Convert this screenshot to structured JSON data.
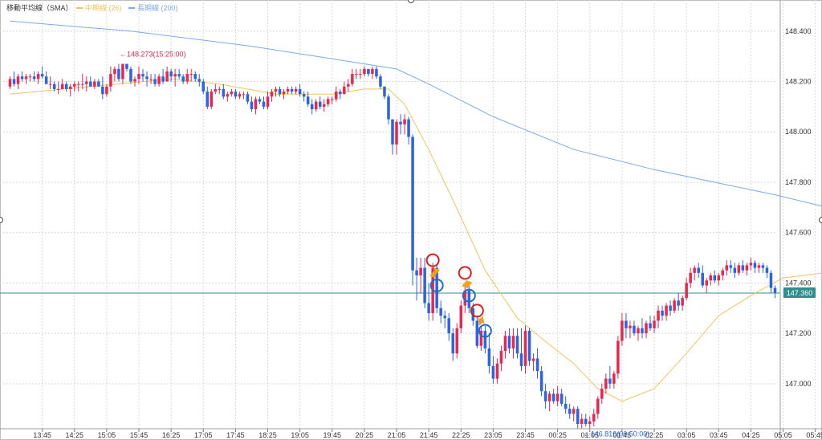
{
  "legend": {
    "indicator_label": "移動平均線（SMA）",
    "mid_label": "中期線 (26)",
    "long_label": "長期線 (200)"
  },
  "colors": {
    "bull": "#e8264f",
    "bear": "#2a63e6",
    "mid_line": "#f3c35f",
    "long_line": "#7ea9ea",
    "current_line": "#2f8f8f",
    "current_bg": "#2f8f8f",
    "high_label": "#e8264f",
    "low_label": "#2a63e6",
    "sell_marker": "#d62020",
    "buy_marker": "#1f6fc4",
    "arrow": "#f0a020",
    "grid": "#d9d9d9"
  },
  "annotations": {
    "high_label": "←148.273(15:25:00)",
    "low_label": "←146.816(00:50:00)",
    "current_price": "147.360"
  },
  "chart_data": {
    "type": "candlestick",
    "ylim": [
      146.84,
      148.46
    ],
    "y_ticks": [
      "148.400",
      "148.200",
      "148.000",
      "147.800",
      "147.600",
      "147.400",
      "147.200",
      "147.000"
    ],
    "y_tick_values": [
      148.4,
      148.2,
      148.0,
      147.8,
      147.6,
      147.4,
      147.2,
      147.0
    ],
    "x_ticks": [
      "13:45",
      "14:25",
      "15:05",
      "15:45",
      "16:25",
      "17:05",
      "17:45",
      "18:25",
      "19:05",
      "19:45",
      "20:25",
      "21:05",
      "21:45",
      "22:25",
      "23:05",
      "23:45",
      "00:25",
      "01:05",
      "01:45",
      "02:25",
      "03:05",
      "03:45",
      "04:25",
      "05:05",
      "05:45"
    ],
    "x_tick_index": [
      8,
      16,
      24,
      32,
      40,
      48,
      56,
      64,
      72,
      80,
      88,
      96,
      104,
      112,
      120,
      128,
      136,
      144,
      152,
      160,
      168,
      176,
      184,
      192,
      200
    ],
    "grid": true,
    "current_price": 147.36,
    "high": {
      "value": 148.273,
      "time": "15:25:00",
      "index": 28
    },
    "low": {
      "value": 146.816,
      "time": "00:50:00",
      "index": 142
    },
    "candles": [
      [
        148.18,
        148.22,
        148.17,
        148.21
      ],
      [
        148.21,
        148.24,
        148.18,
        148.19
      ],
      [
        148.19,
        148.23,
        148.17,
        148.22
      ],
      [
        148.22,
        148.24,
        148.2,
        148.21
      ],
      [
        148.21,
        148.23,
        148.19,
        148.22
      ],
      [
        148.22,
        148.23,
        148.2,
        148.22
      ],
      [
        148.22,
        148.24,
        148.2,
        148.21
      ],
      [
        148.21,
        148.24,
        148.19,
        148.23
      ],
      [
        148.23,
        148.26,
        148.21,
        148.22
      ],
      [
        148.22,
        148.24,
        148.19,
        148.19
      ],
      [
        148.19,
        148.22,
        148.17,
        148.19
      ],
      [
        148.19,
        148.2,
        148.16,
        148.17
      ],
      [
        148.17,
        148.2,
        148.15,
        148.17
      ],
      [
        148.17,
        148.21,
        148.17,
        148.19
      ],
      [
        148.19,
        148.2,
        148.16,
        148.17
      ],
      [
        148.17,
        148.19,
        148.14,
        148.18
      ],
      [
        148.18,
        148.2,
        148.16,
        148.19
      ],
      [
        148.19,
        148.2,
        148.16,
        148.19
      ],
      [
        148.19,
        148.23,
        148.17,
        148.19
      ],
      [
        148.19,
        148.22,
        148.16,
        148.2
      ],
      [
        148.2,
        148.22,
        148.18,
        148.18
      ],
      [
        148.18,
        148.21,
        148.17,
        148.2
      ],
      [
        148.2,
        148.21,
        148.18,
        148.18
      ],
      [
        148.18,
        148.22,
        148.13,
        148.15
      ],
      [
        148.15,
        148.19,
        148.14,
        148.18
      ],
      [
        148.18,
        148.26,
        148.16,
        148.23
      ],
      [
        148.23,
        148.26,
        148.2,
        148.25
      ],
      [
        148.25,
        148.27,
        148.2,
        148.21
      ],
      [
        148.21,
        148.27,
        148.19,
        148.27
      ],
      [
        148.27,
        148.27,
        148.24,
        148.25
      ],
      [
        148.25,
        148.26,
        148.19,
        148.2
      ],
      [
        148.2,
        148.22,
        148.18,
        148.21
      ],
      [
        148.21,
        148.26,
        148.19,
        148.23
      ],
      [
        148.23,
        148.25,
        148.2,
        148.22
      ],
      [
        148.22,
        148.24,
        148.18,
        148.21
      ],
      [
        148.21,
        148.23,
        148.19,
        148.21
      ],
      [
        148.21,
        148.23,
        148.18,
        148.19
      ],
      [
        148.19,
        148.23,
        148.18,
        148.22
      ],
      [
        148.22,
        148.25,
        148.19,
        148.2
      ],
      [
        148.2,
        148.26,
        148.2,
        148.24
      ],
      [
        148.24,
        148.25,
        148.2,
        148.22
      ],
      [
        148.22,
        148.25,
        148.18,
        148.23
      ],
      [
        148.23,
        148.25,
        148.21,
        148.22
      ],
      [
        148.22,
        148.23,
        148.19,
        148.2
      ],
      [
        148.2,
        148.25,
        148.19,
        148.23
      ],
      [
        148.23,
        148.25,
        148.2,
        148.23
      ],
      [
        148.23,
        148.24,
        148.2,
        148.21
      ],
      [
        148.21,
        148.23,
        148.18,
        148.2
      ],
      [
        148.2,
        148.21,
        148.15,
        148.16
      ],
      [
        148.16,
        148.18,
        148.09,
        148.1
      ],
      [
        148.1,
        148.17,
        148.09,
        148.16
      ],
      [
        148.16,
        148.19,
        148.15,
        148.17
      ],
      [
        148.17,
        148.18,
        148.15,
        148.17
      ],
      [
        148.17,
        148.19,
        148.13,
        148.14
      ],
      [
        148.14,
        148.16,
        148.12,
        148.15
      ],
      [
        148.15,
        148.17,
        148.14,
        148.16
      ],
      [
        148.16,
        148.17,
        148.13,
        148.14
      ],
      [
        148.14,
        148.16,
        148.13,
        148.15
      ],
      [
        148.15,
        148.16,
        148.13,
        148.15
      ],
      [
        148.15,
        148.16,
        148.11,
        148.12
      ],
      [
        148.12,
        148.14,
        148.08,
        148.09
      ],
      [
        148.09,
        148.14,
        148.07,
        148.13
      ],
      [
        148.13,
        148.14,
        148.11,
        148.12
      ],
      [
        148.12,
        148.14,
        148.09,
        148.1
      ],
      [
        148.1,
        148.16,
        148.09,
        148.14
      ],
      [
        148.14,
        148.17,
        148.12,
        148.16
      ],
      [
        148.16,
        148.18,
        148.14,
        148.17
      ],
      [
        148.17,
        148.18,
        148.14,
        148.15
      ],
      [
        148.15,
        148.17,
        148.13,
        148.16
      ],
      [
        148.16,
        148.18,
        148.15,
        148.17
      ],
      [
        148.17,
        148.18,
        148.15,
        148.16
      ],
      [
        148.16,
        148.18,
        148.15,
        148.17
      ],
      [
        148.17,
        148.19,
        148.14,
        148.15
      ],
      [
        148.15,
        148.16,
        148.12,
        148.14
      ],
      [
        148.14,
        148.16,
        148.1,
        148.11
      ],
      [
        148.11,
        148.13,
        148.07,
        148.09
      ],
      [
        148.09,
        148.13,
        148.08,
        148.12
      ],
      [
        148.12,
        148.14,
        148.09,
        148.1
      ],
      [
        148.1,
        148.13,
        148.08,
        148.11
      ],
      [
        148.11,
        148.14,
        148.1,
        148.13
      ],
      [
        148.13,
        148.14,
        148.11,
        148.13
      ],
      [
        148.13,
        148.18,
        148.12,
        148.16
      ],
      [
        148.16,
        148.17,
        148.13,
        148.15
      ],
      [
        148.15,
        148.2,
        148.15,
        148.18
      ],
      [
        148.18,
        148.21,
        148.16,
        148.19
      ],
      [
        148.19,
        148.25,
        148.18,
        148.23
      ],
      [
        148.23,
        148.25,
        148.21,
        148.23
      ],
      [
        148.23,
        148.25,
        148.21,
        148.23
      ],
      [
        148.23,
        148.26,
        148.22,
        148.25
      ],
      [
        148.25,
        148.25,
        148.22,
        148.23
      ],
      [
        148.23,
        148.26,
        148.21,
        148.25
      ],
      [
        148.25,
        148.26,
        148.21,
        148.22
      ],
      [
        148.22,
        148.23,
        148.17,
        148.18
      ],
      [
        148.18,
        148.18,
        148.13,
        148.14
      ],
      [
        148.14,
        148.15,
        148.03,
        148.05
      ],
      [
        148.05,
        148.05,
        147.91,
        147.95
      ],
      [
        147.95,
        148.05,
        147.91,
        148.04
      ],
      [
        148.04,
        148.07,
        147.99,
        148.03
      ],
      [
        148.03,
        148.07,
        147.99,
        148.05
      ],
      [
        148.05,
        148.06,
        147.95,
        147.98
      ],
      [
        147.98,
        147.99,
        147.39,
        147.45
      ],
      [
        147.45,
        147.5,
        147.33,
        147.43
      ],
      [
        147.43,
        147.5,
        147.36,
        147.46
      ],
      [
        147.46,
        147.5,
        147.3,
        147.32
      ],
      [
        147.32,
        147.4,
        147.25,
        147.28
      ],
      [
        147.28,
        147.48,
        147.25,
        147.46
      ],
      [
        147.46,
        147.47,
        147.28,
        147.3
      ],
      [
        147.3,
        147.33,
        147.24,
        147.27
      ],
      [
        147.27,
        147.29,
        147.22,
        147.26
      ],
      [
        147.26,
        147.28,
        147.17,
        147.2
      ],
      [
        147.2,
        147.22,
        147.09,
        147.12
      ],
      [
        147.12,
        147.24,
        147.1,
        147.22
      ],
      [
        147.22,
        147.33,
        147.2,
        147.31
      ],
      [
        147.31,
        147.4,
        147.28,
        147.37
      ],
      [
        147.37,
        147.39,
        147.28,
        147.3
      ],
      [
        147.3,
        147.32,
        147.23,
        147.25
      ],
      [
        147.25,
        147.27,
        147.14,
        147.15
      ],
      [
        147.15,
        147.23,
        147.13,
        147.21
      ],
      [
        147.21,
        147.23,
        147.12,
        147.14
      ],
      [
        147.14,
        147.2,
        147.04,
        147.07
      ],
      [
        147.07,
        147.11,
        147.0,
        147.02
      ],
      [
        147.02,
        147.1,
        147.0,
        147.08
      ],
      [
        147.08,
        147.15,
        147.05,
        147.13
      ],
      [
        147.13,
        147.21,
        147.1,
        147.19
      ],
      [
        147.19,
        147.22,
        147.12,
        147.14
      ],
      [
        147.14,
        147.22,
        147.1,
        147.19
      ],
      [
        147.19,
        147.22,
        147.1,
        147.12
      ],
      [
        147.12,
        147.22,
        147.05,
        147.07
      ],
      [
        147.07,
        147.23,
        147.04,
        147.21
      ],
      [
        147.21,
        147.22,
        147.07,
        147.09
      ],
      [
        147.09,
        147.12,
        147.05,
        147.1
      ],
      [
        147.1,
        147.14,
        147.02,
        147.05
      ],
      [
        147.05,
        147.07,
        146.95,
        146.97
      ],
      [
        146.97,
        147.0,
        146.9,
        146.93
      ],
      [
        146.93,
        146.97,
        146.89,
        146.96
      ],
      [
        146.96,
        146.98,
        146.92,
        146.93
      ],
      [
        146.93,
        146.99,
        146.91,
        146.96
      ],
      [
        146.96,
        146.98,
        146.91,
        146.92
      ],
      [
        146.92,
        146.95,
        146.88,
        146.9
      ],
      [
        146.9,
        146.92,
        146.86,
        146.88
      ],
      [
        146.88,
        146.91,
        146.85,
        146.9
      ],
      [
        146.9,
        146.91,
        146.82,
        146.84
      ],
      [
        146.84,
        146.88,
        146.82,
        146.86
      ],
      [
        146.86,
        146.88,
        146.83,
        146.84
      ],
      [
        146.84,
        146.87,
        146.82,
        146.85
      ],
      [
        146.85,
        146.9,
        146.83,
        146.88
      ],
      [
        146.88,
        146.95,
        146.86,
        146.94
      ],
      [
        146.94,
        147.0,
        146.92,
        146.98
      ],
      [
        146.98,
        147.04,
        146.96,
        147.02
      ],
      [
        147.02,
        147.07,
        146.98,
        147.0
      ],
      [
        147.0,
        147.05,
        146.98,
        147.04
      ],
      [
        147.04,
        147.19,
        147.02,
        147.17
      ],
      [
        147.17,
        147.28,
        147.15,
        147.25
      ],
      [
        147.25,
        147.28,
        147.18,
        147.22
      ],
      [
        147.22,
        147.25,
        147.18,
        147.23
      ],
      [
        147.23,
        147.25,
        147.19,
        147.2
      ],
      [
        147.2,
        147.23,
        147.17,
        147.22
      ],
      [
        147.22,
        147.26,
        147.18,
        147.2
      ],
      [
        147.2,
        147.25,
        147.18,
        147.24
      ],
      [
        147.24,
        147.27,
        147.21,
        147.22
      ],
      [
        147.22,
        147.27,
        147.2,
        147.25
      ],
      [
        147.25,
        147.31,
        147.22,
        147.29
      ],
      [
        147.29,
        147.31,
        147.25,
        147.27
      ],
      [
        147.27,
        147.32,
        147.25,
        147.31
      ],
      [
        147.31,
        147.33,
        147.27,
        147.29
      ],
      [
        147.29,
        147.34,
        147.28,
        147.33
      ],
      [
        147.33,
        147.36,
        147.29,
        147.31
      ],
      [
        147.31,
        147.35,
        147.29,
        147.34
      ],
      [
        147.34,
        147.42,
        147.33,
        147.4
      ],
      [
        147.4,
        147.46,
        147.38,
        147.44
      ],
      [
        147.44,
        147.47,
        147.41,
        147.46
      ],
      [
        147.46,
        147.48,
        147.42,
        147.44
      ],
      [
        147.44,
        147.47,
        147.38,
        147.39
      ],
      [
        147.39,
        147.42,
        147.36,
        147.41
      ],
      [
        147.41,
        147.44,
        147.39,
        147.43
      ],
      [
        147.43,
        147.45,
        147.4,
        147.41
      ],
      [
        147.41,
        147.44,
        147.39,
        147.43
      ],
      [
        147.43,
        147.46,
        147.41,
        147.45
      ],
      [
        147.45,
        147.49,
        147.43,
        147.47
      ],
      [
        147.47,
        147.49,
        147.44,
        147.46
      ],
      [
        147.46,
        147.48,
        147.42,
        147.44
      ],
      [
        147.44,
        147.48,
        147.43,
        147.47
      ],
      [
        147.47,
        147.49,
        147.44,
        147.45
      ],
      [
        147.45,
        147.48,
        147.43,
        147.47
      ],
      [
        147.47,
        147.5,
        147.45,
        147.48
      ],
      [
        147.48,
        147.49,
        147.44,
        147.46
      ],
      [
        147.46,
        147.48,
        147.44,
        147.47
      ],
      [
        147.47,
        147.48,
        147.44,
        147.46
      ],
      [
        147.46,
        147.47,
        147.42,
        147.44
      ],
      [
        147.44,
        147.45,
        147.36,
        147.38
      ],
      [
        147.38,
        147.39,
        147.34,
        147.36
      ]
    ],
    "mid_sma": [
      [
        0,
        148.15
      ],
      [
        20,
        148.18
      ],
      [
        40,
        148.21
      ],
      [
        52,
        148.19
      ],
      [
        66,
        148.15
      ],
      [
        80,
        148.15
      ],
      [
        88,
        148.17
      ],
      [
        94,
        148.17
      ],
      [
        98,
        148.11
      ],
      [
        104,
        147.93
      ],
      [
        110,
        147.73
      ],
      [
        118,
        147.45
      ],
      [
        126,
        147.26
      ],
      [
        132,
        147.18
      ],
      [
        140,
        147.08
      ],
      [
        146,
        146.98
      ],
      [
        152,
        146.93
      ],
      [
        160,
        146.98
      ],
      [
        168,
        147.12
      ],
      [
        176,
        147.27
      ],
      [
        184,
        147.35
      ],
      [
        192,
        147.42
      ],
      [
        202,
        147.44
      ]
    ],
    "long_sma": [
      [
        0,
        148.44
      ],
      [
        30,
        148.4
      ],
      [
        60,
        148.34
      ],
      [
        80,
        148.29
      ],
      [
        96,
        148.25
      ],
      [
        104,
        148.19
      ],
      [
        120,
        148.06
      ],
      [
        140,
        147.93
      ],
      [
        160,
        147.85
      ],
      [
        175,
        147.8
      ],
      [
        190,
        147.75
      ],
      [
        203,
        147.7
      ]
    ],
    "signals": [
      {
        "type": "sell",
        "index": 105,
        "price": 147.49
      },
      {
        "type": "buy",
        "index": 106,
        "price": 147.39
      },
      {
        "type": "sell",
        "index": 113,
        "price": 147.44
      },
      {
        "type": "buy",
        "index": 114,
        "price": 147.35
      },
      {
        "type": "sell",
        "index": 116,
        "price": 147.29
      },
      {
        "type": "buy",
        "index": 118,
        "price": 147.21
      }
    ]
  }
}
